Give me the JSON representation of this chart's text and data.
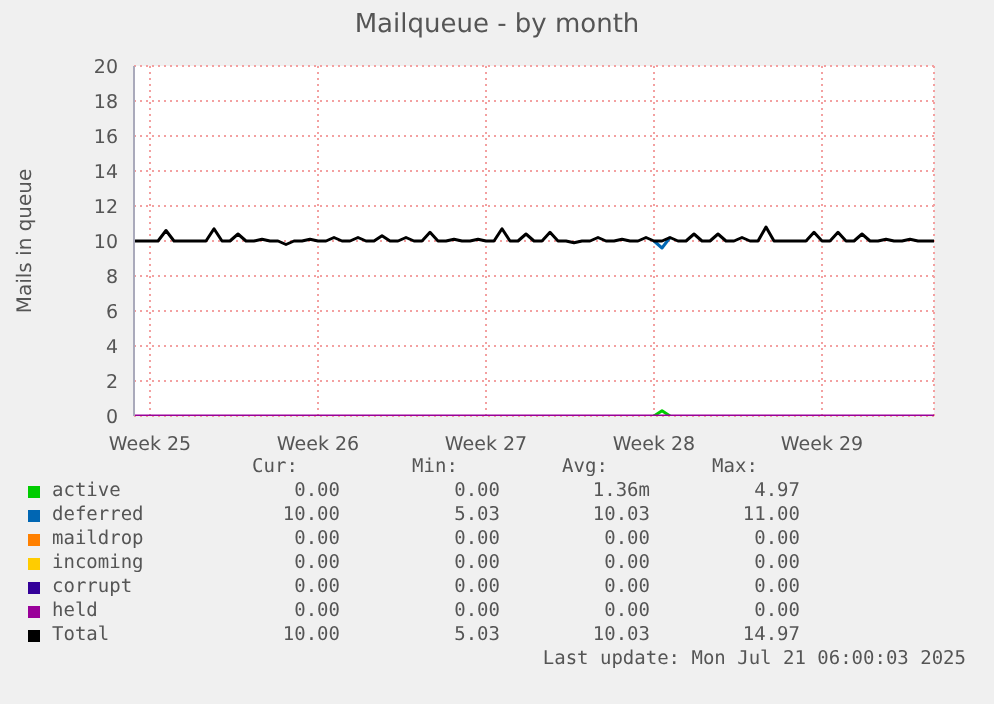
{
  "chart_data": {
    "type": "line",
    "title": "Mailqueue - by month",
    "ylabel": "Mails in queue",
    "categories": [
      null,
      null,
      "Week 25",
      null,
      null,
      null,
      null,
      null,
      null,
      null,
      null,
      null,
      null,
      null,
      null,
      null,
      null,
      null,
      null,
      null,
      null,
      null,
      null,
      "Week 26",
      null,
      null,
      null,
      null,
      null,
      null,
      null,
      null,
      null,
      null,
      null,
      null,
      null,
      null,
      null,
      null,
      null,
      null,
      null,
      null,
      "Week 27",
      null,
      null,
      null,
      null,
      null,
      null,
      null,
      null,
      null,
      null,
      null,
      null,
      null,
      null,
      null,
      null,
      null,
      null,
      null,
      null,
      "Week 28",
      null,
      null,
      null,
      null,
      null,
      null,
      null,
      null,
      null,
      null,
      null,
      null,
      null,
      null,
      null,
      null,
      null,
      null,
      null,
      null,
      "Week 29",
      null,
      null,
      null,
      null,
      null,
      null,
      null,
      null,
      null,
      null,
      null,
      null,
      null,
      null
    ],
    "ylim": [
      0,
      20
    ],
    "yticks": [
      0,
      2,
      4,
      6,
      8,
      10,
      12,
      14,
      16,
      18,
      20
    ],
    "grid": true,
    "legend": "bottom",
    "marker": "none",
    "line_style": "solid",
    "series": [
      {
        "name": "active",
        "color": "#00cc00",
        "values": [
          null,
          null,
          null,
          null,
          null,
          null,
          null,
          null,
          null,
          null,
          null,
          null,
          null,
          null,
          null,
          null,
          null,
          null,
          null,
          null,
          null,
          null,
          null,
          null,
          null,
          null,
          null,
          null,
          null,
          null,
          null,
          null,
          null,
          null,
          null,
          null,
          null,
          null,
          null,
          null,
          null,
          null,
          null,
          null,
          null,
          null,
          null,
          null,
          null,
          null,
          null,
          null,
          null,
          null,
          null,
          null,
          null,
          null,
          null,
          null,
          null,
          null,
          null,
          null,
          null,
          0,
          0.3,
          0,
          null,
          null,
          null,
          null,
          null,
          null,
          null,
          null,
          null,
          null,
          null,
          null,
          null,
          null,
          null,
          null,
          null,
          null,
          null,
          null,
          null,
          null,
          null,
          null,
          null,
          null,
          null,
          null,
          null,
          null,
          null,
          null,
          null
        ]
      },
      {
        "name": "deferred",
        "color": "#0066b3",
        "values": [
          null,
          null,
          null,
          null,
          null,
          null,
          null,
          null,
          null,
          null,
          null,
          null,
          null,
          null,
          null,
          null,
          null,
          null,
          null,
          null,
          null,
          null,
          null,
          null,
          null,
          null,
          null,
          null,
          null,
          null,
          null,
          null,
          null,
          null,
          null,
          null,
          null,
          null,
          null,
          null,
          null,
          null,
          null,
          null,
          null,
          null,
          null,
          null,
          null,
          null,
          null,
          null,
          null,
          null,
          null,
          null,
          null,
          null,
          null,
          null,
          null,
          null,
          null,
          null,
          null,
          10,
          9.6,
          10.2,
          null,
          null,
          null,
          null,
          null,
          null,
          null,
          null,
          null,
          null,
          null,
          null,
          null,
          null,
          null,
          null,
          null,
          null,
          null,
          null,
          null,
          null,
          null,
          null,
          null,
          null,
          null,
          null,
          null,
          null,
          null,
          null,
          null
        ]
      },
      {
        "name": "maildrop",
        "color": "#ff8000",
        "values": [
          null,
          null,
          null,
          null,
          null,
          null,
          null,
          null,
          null,
          null,
          null,
          null,
          null,
          null,
          null,
          null,
          null,
          null,
          null,
          null,
          null,
          null,
          null,
          null,
          null,
          null,
          null,
          null,
          null,
          null,
          null,
          null,
          null,
          null,
          null,
          null,
          null,
          null,
          null,
          null,
          null,
          null,
          null,
          null,
          null,
          null,
          null,
          null,
          null,
          null,
          null,
          null,
          null,
          null,
          null,
          null,
          null,
          null,
          null,
          null,
          null,
          null,
          null,
          null,
          null,
          null,
          null,
          null,
          null,
          null,
          null,
          null,
          null,
          null,
          null,
          null,
          null,
          null,
          null,
          null,
          null,
          null,
          null,
          null,
          null,
          null,
          null,
          null,
          null,
          null,
          null,
          null,
          null,
          null,
          null,
          null,
          null,
          null,
          null,
          null,
          null
        ]
      },
      {
        "name": "incoming",
        "color": "#ffcc00",
        "values": [
          null,
          null,
          null,
          null,
          null,
          null,
          null,
          null,
          null,
          null,
          null,
          null,
          null,
          null,
          null,
          null,
          null,
          null,
          null,
          null,
          null,
          null,
          null,
          null,
          null,
          null,
          null,
          null,
          null,
          null,
          null,
          null,
          null,
          null,
          null,
          null,
          null,
          null,
          null,
          null,
          null,
          null,
          null,
          null,
          null,
          null,
          null,
          null,
          null,
          null,
          null,
          null,
          null,
          null,
          null,
          null,
          null,
          null,
          null,
          null,
          null,
          null,
          null,
          null,
          null,
          null,
          null,
          null,
          null,
          null,
          null,
          null,
          null,
          null,
          null,
          null,
          null,
          null,
          null,
          null,
          null,
          null,
          null,
          null,
          null,
          null,
          null,
          null,
          null,
          null,
          null,
          null,
          null,
          null,
          null,
          null,
          null,
          null,
          null,
          null,
          null
        ]
      },
      {
        "name": "corrupt",
        "color": "#330099",
        "values": [
          null,
          null,
          null,
          null,
          null,
          null,
          null,
          null,
          null,
          null,
          null,
          null,
          null,
          null,
          null,
          null,
          null,
          null,
          null,
          null,
          null,
          null,
          null,
          null,
          null,
          null,
          null,
          null,
          null,
          null,
          null,
          null,
          null,
          null,
          null,
          null,
          null,
          null,
          null,
          null,
          null,
          null,
          null,
          null,
          null,
          null,
          null,
          null,
          null,
          null,
          null,
          null,
          null,
          null,
          null,
          null,
          null,
          null,
          null,
          null,
          null,
          null,
          null,
          null,
          null,
          null,
          null,
          null,
          null,
          null,
          null,
          null,
          null,
          null,
          null,
          null,
          null,
          null,
          null,
          null,
          null,
          null,
          null,
          null,
          null,
          null,
          null,
          null,
          null,
          null,
          null,
          null,
          null,
          null,
          null,
          null,
          null,
          null,
          null,
          null,
          null
        ]
      },
      {
        "name": "held",
        "color": "#990099",
        "values": [
          0,
          0,
          0,
          0,
          0,
          0,
          0,
          0,
          0,
          0,
          0,
          0,
          0,
          0,
          0,
          0,
          0,
          0,
          0,
          0,
          0,
          0,
          0,
          0,
          0,
          0,
          0,
          0,
          0,
          0,
          0,
          0,
          0,
          0,
          0,
          0,
          0,
          0,
          0,
          0,
          0,
          0,
          0,
          0,
          0,
          0,
          0,
          0,
          0,
          0,
          0,
          0,
          0,
          0,
          0,
          0,
          0,
          0,
          0,
          0,
          0,
          0,
          0,
          0,
          0,
          0,
          0,
          0,
          0,
          0,
          0,
          0,
          0,
          0,
          0,
          0,
          0,
          0,
          0,
          0,
          0,
          0,
          0,
          0,
          0,
          0,
          0,
          0,
          0,
          0,
          0,
          0,
          0,
          0,
          0,
          0,
          0,
          0,
          0,
          0,
          0
        ]
      },
      {
        "name": "Total",
        "color": "#000000",
        "values": [
          10,
          10,
          10,
          10,
          10.6,
          10,
          10,
          10,
          10,
          10,
          10.7,
          10,
          10,
          10.4,
          10,
          10,
          10.1,
          10,
          10,
          9.8,
          10,
          10,
          10.1,
          10,
          10,
          10.2,
          10,
          10,
          10.2,
          10,
          10,
          10.3,
          10,
          10,
          10.2,
          10,
          10,
          10.5,
          10,
          10,
          10.1,
          10,
          10,
          10.1,
          10,
          10,
          10.7,
          10,
          10,
          10.4,
          10,
          10,
          10.5,
          10,
          10,
          9.9,
          10,
          10,
          10.2,
          10,
          10,
          10.1,
          10,
          10,
          10.2,
          10,
          10,
          10.2,
          10,
          10,
          10.4,
          10,
          10,
          10.4,
          10,
          10,
          10.2,
          10,
          10,
          10.8,
          10,
          10,
          10,
          10,
          10,
          10.5,
          10,
          10,
          10.5,
          10,
          10,
          10.4,
          10,
          10,
          10.1,
          10,
          10,
          10.1,
          10,
          10,
          10
        ]
      }
    ],
    "annotations": [
      "Cur:",
      "Min:",
      "Avg:",
      "Max:",
      "0.00",
      "0.00",
      "1.36m",
      "4.97",
      "10.00",
      "5.03",
      "10.03",
      "11.00",
      "0.00",
      "0.00",
      "0.00",
      "0.00",
      "0.00",
      "0.00",
      "0.00",
      "0.00",
      "0.00",
      "0.00",
      "0.00",
      "0.00",
      "0.00",
      "0.00",
      "0.00",
      "0.00",
      "10.00",
      "5.03",
      "10.03",
      "14.97",
      "Last update: Mon Jul 21 06:00:03 2025"
    ]
  }
}
